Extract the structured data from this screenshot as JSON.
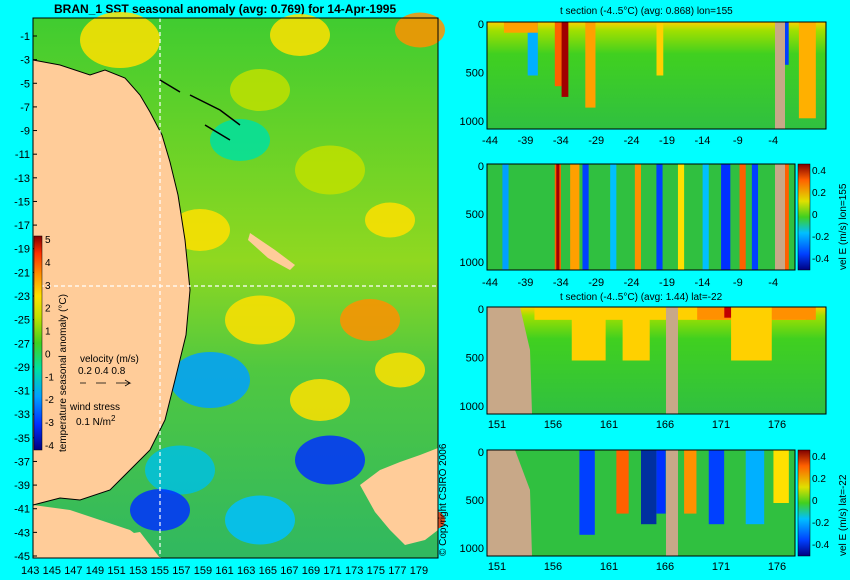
{
  "main_map": {
    "title": "BRAN_1  SST seasonal anomaly  (avg: 0.769)  for 14-Apr-1995",
    "lat_ticks": [
      "-1",
      "-3",
      "-5",
      "-7",
      "-9",
      "-11",
      "-13",
      "-15",
      "-17",
      "-19",
      "-21",
      "-23",
      "-25",
      "-27",
      "-29",
      "-31",
      "-33",
      "-35",
      "-37",
      "-39",
      "-41",
      "-43",
      "-45"
    ],
    "lon_ticks": [
      "143",
      "145",
      "147",
      "149",
      "151",
      "153",
      "155",
      "157",
      "159",
      "161",
      "163",
      "165",
      "167",
      "169",
      "171",
      "173",
      "175",
      "177",
      "179"
    ],
    "colorbar_ticks": [
      "5",
      "4",
      "3",
      "2",
      "1",
      "0",
      "-1",
      "-2",
      "-3",
      "-4"
    ],
    "colorbar_label": "temperature seasonal anomaly (°C)",
    "velocity_label": "velocity (m/s)",
    "velocity_scale": "0.2 0.4 0.8",
    "windstress_label": "wind stress",
    "windstress_scale": "0.1 N/m",
    "windstress_sup": "2",
    "copyright": "© Copyright CSIRO 2006",
    "colors": {
      "land": "#ffcc99",
      "sea": "#44cc33",
      "crosshair": "#ffffff"
    }
  },
  "panels": {
    "p1_title": "t section (-4..5°C) (avg: 0.868) lon=155",
    "p3_title": "t section (-4..5°C) (avg: 1.44) lat=-22",
    "p2_cbar_label": "vel E (m/s) lon=155",
    "p4_cbar_label": "vel E (m/s) lat=-22",
    "depth_ticks": [
      "0",
      "500",
      "1000"
    ],
    "lat_axis_ticks": [
      "-44",
      "-39",
      "-34",
      "-29",
      "-24",
      "-19",
      "-14",
      "-9",
      "-4"
    ],
    "lon_axis_ticks": [
      "151",
      "156",
      "161",
      "166",
      "171",
      "176"
    ],
    "vel_cbar_ticks": [
      "0.4",
      "0.2",
      "0",
      "-0.2",
      "-0.4"
    ]
  },
  "chart_data": [
    {
      "type": "heatmap",
      "title": "BRAN_1  SST seasonal anomaly  (avg: 0.769)  for 14-Apr-1995",
      "x_range": [
        143,
        180
      ],
      "y_range": [
        -45,
        0
      ],
      "color_range": [
        -4,
        5
      ],
      "colorbar_label": "temperature seasonal anomaly (°C)"
    },
    {
      "type": "heatmap",
      "title": "t section (-4..5°C) (avg: 0.868) lon=155",
      "x_range": [
        -45,
        -1
      ],
      "y_range": [
        0,
        1050
      ],
      "color_range": [
        -4,
        5
      ]
    },
    {
      "type": "heatmap",
      "x_range": [
        -45,
        -1
      ],
      "y_range": [
        0,
        1050
      ],
      "color_range": [
        -0.4,
        0.4
      ],
      "colorbar_label": "vel E (m/s) lon=155"
    },
    {
      "type": "heatmap",
      "title": "t section (-4..5°C) (avg: 1.44) lat=-22",
      "x_range": [
        150,
        180
      ],
      "y_range": [
        0,
        1050
      ],
      "color_range": [
        -4,
        5
      ]
    },
    {
      "type": "heatmap",
      "x_range": [
        150,
        180
      ],
      "y_range": [
        0,
        1050
      ],
      "color_range": [
        -0.4,
        0.4
      ],
      "colorbar_label": "vel E (m/s) lat=-22"
    }
  ]
}
